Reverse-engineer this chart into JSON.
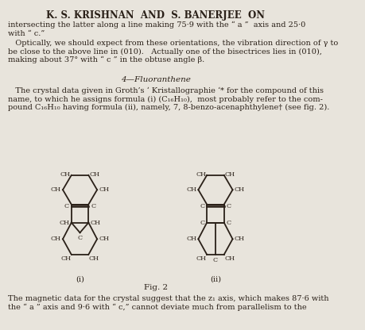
{
  "title": "K. S. KRISHNAN  AND  S. BANERJEE  ON",
  "bg_color": "#e8e4dc",
  "text_color": "#2a2018",
  "para1": "intersecting the latter along a line making 75·9 with the “ a ”  axis and 25·0\nwith “ c.”",
  "para2": "   Optically, we should expect from these orientations, the vibration direction of γ to\nbe close to the above line in (010).   Actually one of the bisectrices lies in (010),\nmaking about 37° with “ c ” in the obtuse angle β.",
  "section": "4—Fluoranthene",
  "para3": "   The crystal data given in Groth’s ‘ Kristallographie ‘* for the compound of this\nname, to which he assigns formula (i) (C₁₆H₁₀),  most probably refer to the com-\npound C₁₆H₁₀ having formula (ii), namely, 7, 8-benzo-acenaphthylene† (see fig. 2).",
  "fig_caption": "Fig. 2",
  "label_i": "(i)",
  "label_ii": "(ii)",
  "para4": "The magnetic data for the crystal suggest that the z₁ axis, which makes 87·6 with\nthe “ a ” axis and 9·6 with “ c,” cannot deviate much from parallelism to the"
}
